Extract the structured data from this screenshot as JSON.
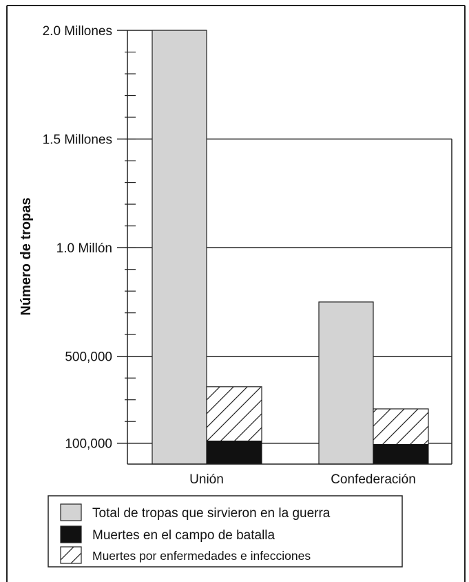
{
  "chart_data": {
    "type": "bar",
    "ylabel": "Número de tropas",
    "categories": [
      "Unión",
      "Confederación"
    ],
    "y_ticks": [
      {
        "value": 2000000,
        "label": "2.0 Millones"
      },
      {
        "value": 1500000,
        "label": "1.5 Millones"
      },
      {
        "value": 1000000,
        "label": "1.0 Millón"
      },
      {
        "value": 500000,
        "label": "500,000"
      },
      {
        "value": 100000,
        "label": "100,000"
      }
    ],
    "ylim": [
      0,
      2000000
    ],
    "minor_tick_step": 100000,
    "grid": true,
    "series": [
      {
        "name": "Total de tropas que sirvieron en la guerra",
        "values": [
          2000000,
          750000
        ],
        "color": "#d3d3d3",
        "pattern": "solid",
        "stack": "a"
      },
      {
        "name": "Muertes en el campo de batalla",
        "values": [
          110000,
          94000
        ],
        "color": "#111111",
        "pattern": "solid",
        "stack": "b"
      },
      {
        "name": "Muertes por enfermedades e infecciones",
        "values": [
          250000,
          164000
        ],
        "color": "#ffffff",
        "pattern": "diagonal-hatch",
        "stack": "b"
      }
    ],
    "legend_position": "bottom"
  }
}
